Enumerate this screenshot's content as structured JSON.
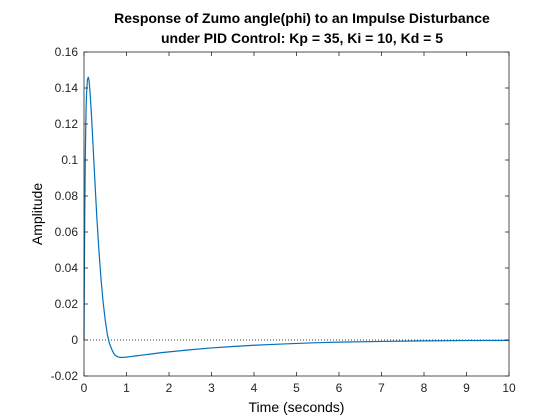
{
  "chart_data": {
    "type": "line",
    "title": [
      "Response of Zumo angle(phi) to an Impulse Disturbance",
      "under PID Control: Kp = 35, Ki = 10, Kd = 5"
    ],
    "xlabel": "Time (seconds)",
    "ylabel": "Amplitude",
    "xlim": [
      0,
      10
    ],
    "ylim": [
      -0.02,
      0.16
    ],
    "xticks": [
      0,
      1,
      2,
      3,
      4,
      5,
      6,
      7,
      8,
      9,
      10
    ],
    "yticks": [
      -0.02,
      0,
      0.02,
      0.04,
      0.06,
      0.08,
      0.1,
      0.12,
      0.14,
      0.16
    ],
    "xtick_labels": [
      "0",
      "1",
      "2",
      "3",
      "4",
      "5",
      "6",
      "7",
      "8",
      "9",
      "10"
    ],
    "ytick_labels": [
      "-0.02",
      "0",
      "0.02",
      "0.04",
      "0.06",
      "0.08",
      "0.1",
      "0.12",
      "0.14",
      "0.16"
    ],
    "grid": false,
    "reference_line": {
      "y": 0,
      "style": "dotted"
    },
    "series": [
      {
        "color": "#0072BD",
        "x": [
          0,
          0.01,
          0.02,
          0.03,
          0.04,
          0.05,
          0.06,
          0.08,
          0.1,
          0.12,
          0.14,
          0.16,
          0.18,
          0.2,
          0.25,
          0.3,
          0.35,
          0.4,
          0.45,
          0.5,
          0.55,
          0.6,
          0.65,
          0.7,
          0.75,
          0.8,
          0.85,
          0.9,
          0.95,
          1.0,
          1.1,
          1.2,
          1.4,
          1.6,
          1.8,
          2.0,
          2.5,
          3.0,
          3.5,
          4.0,
          4.5,
          5.0,
          5.5,
          6.0,
          7.0,
          8.0,
          9.0,
          10.0
        ],
        "y": [
          0,
          0.04,
          0.075,
          0.1,
          0.117,
          0.129,
          0.137,
          0.1445,
          0.146,
          0.144,
          0.138,
          0.131,
          0.123,
          0.114,
          0.091,
          0.069,
          0.05,
          0.034,
          0.021,
          0.011,
          0.003,
          -0.002,
          -0.005,
          -0.0075,
          -0.0088,
          -0.0094,
          -0.0096,
          -0.0097,
          -0.0096,
          -0.0095,
          -0.0092,
          -0.0089,
          -0.0083,
          -0.0077,
          -0.0071,
          -0.0066,
          -0.0054,
          -0.0044,
          -0.0036,
          -0.0029,
          -0.0024,
          -0.0019,
          -0.0015,
          -0.0012,
          -0.0008,
          -0.0005,
          -0.0003,
          -0.0002
        ]
      }
    ]
  }
}
